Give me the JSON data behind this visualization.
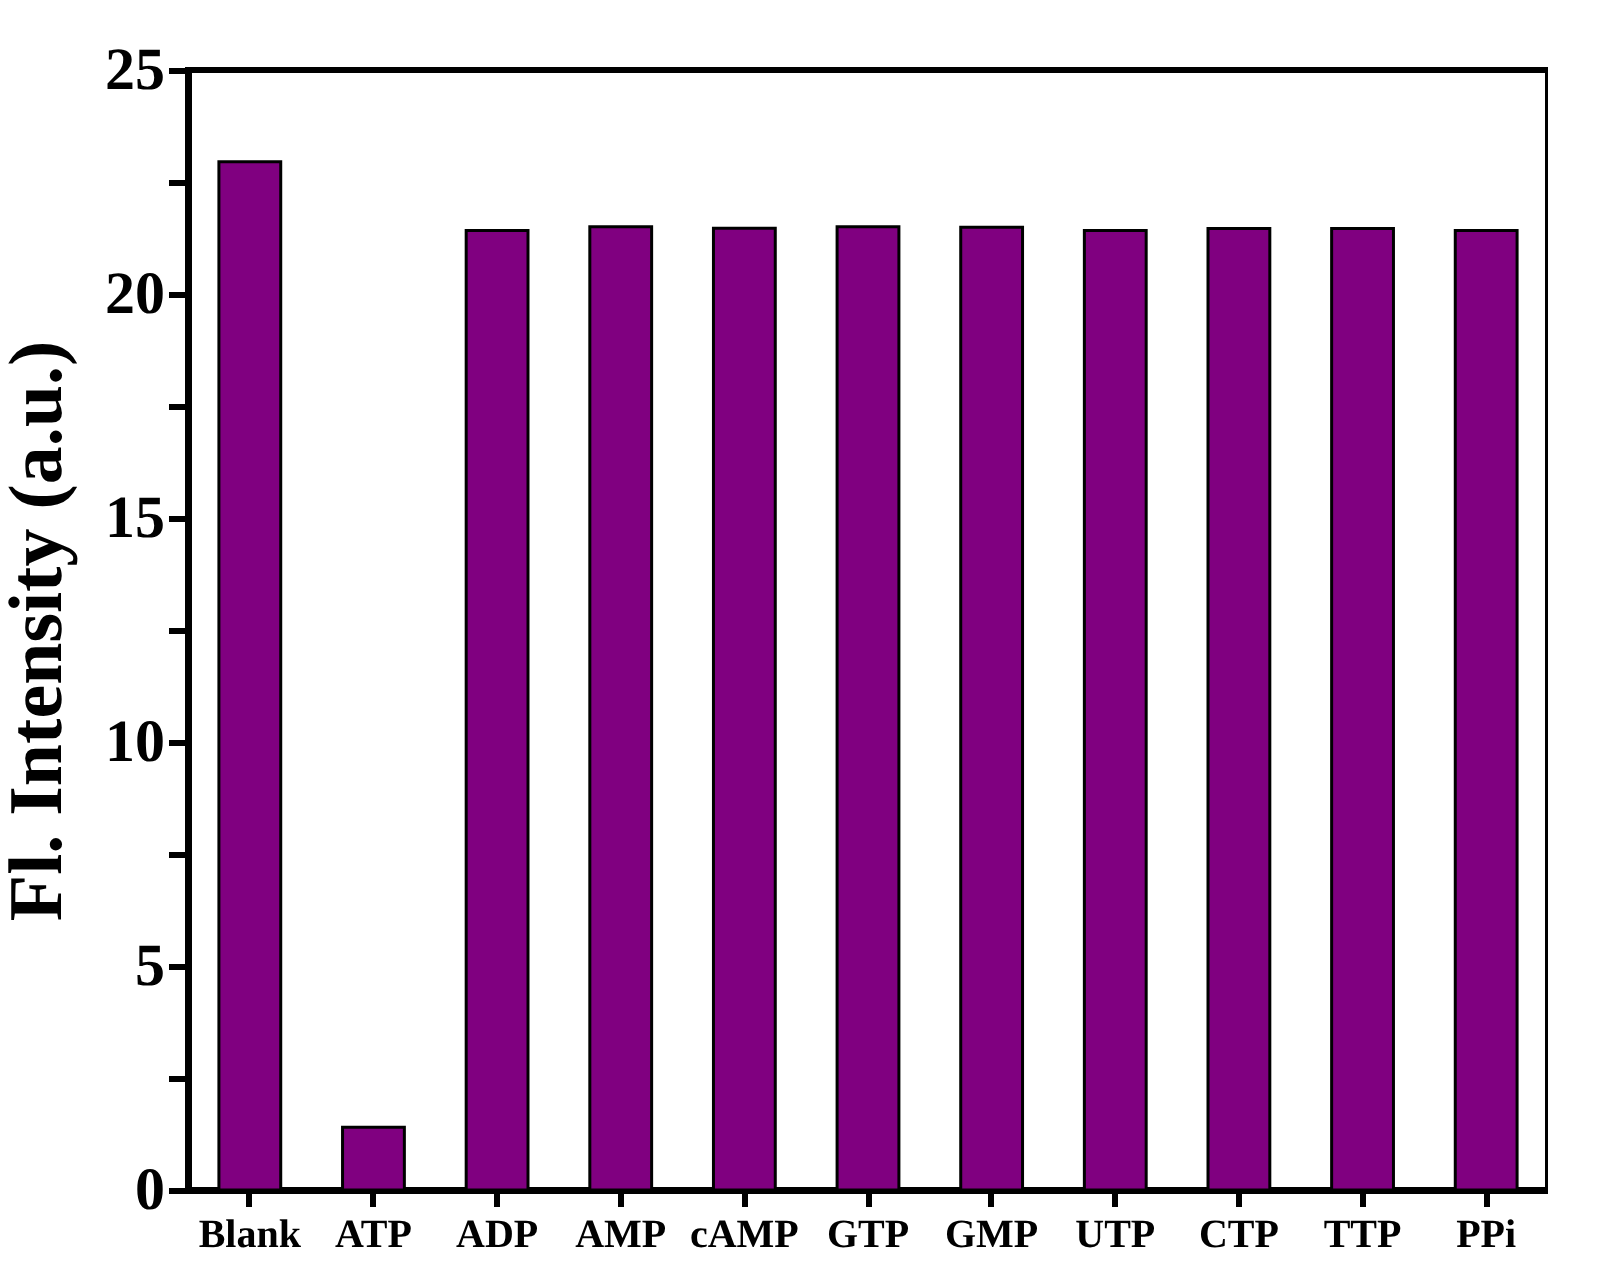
{
  "chart_data": {
    "type": "bar",
    "ylabel": "Fl. Intensity (a.u.)",
    "categories": [
      "Blank",
      "ATP",
      "ADP",
      "AMP",
      "cAMP",
      "GTP",
      "GMP",
      "UTP",
      "CTP",
      "TTP",
      "PPi"
    ],
    "values": [
      22.95,
      1.4,
      21.42,
      21.5,
      21.47,
      21.5,
      21.49,
      21.42,
      21.46,
      21.46,
      21.42
    ],
    "color": "#800080",
    "ylim": [
      0,
      25
    ],
    "yticks": [
      0,
      {
        "value": 2.5,
        "label": null
      },
      5,
      {
        "value": 7.5,
        "label": null
      },
      10,
      {
        "value": 12.5,
        "label": null
      },
      15,
      {
        "value": 17.5,
        "label": null
      },
      20,
      {
        "value": 22.5,
        "label": null
      },
      25
    ],
    "grid": false
  }
}
